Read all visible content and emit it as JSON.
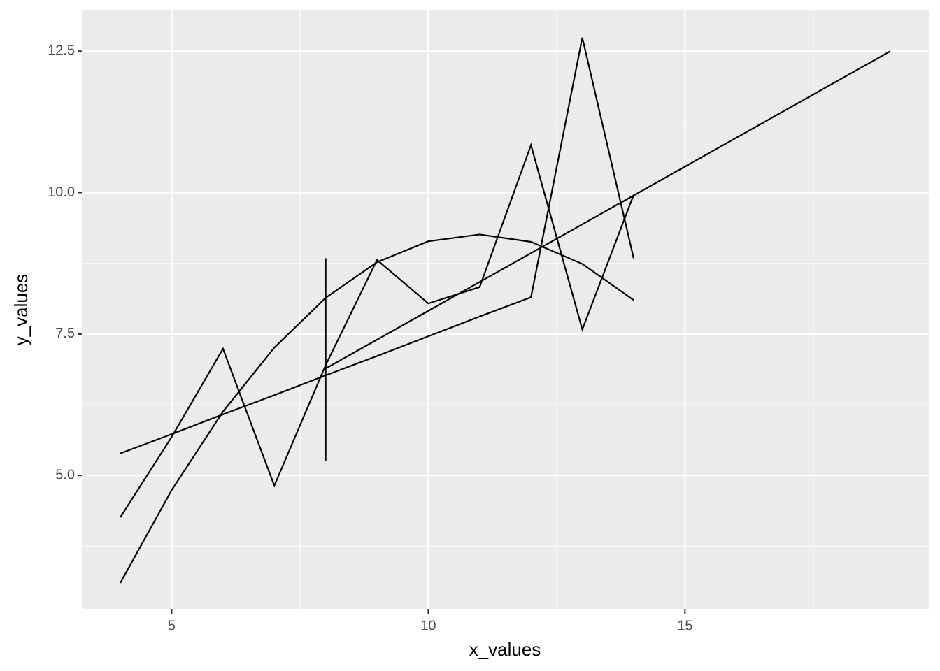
{
  "chart_data": {
    "type": "line",
    "x_label": "x_values",
    "y_label": "y_values",
    "series": [
      {
        "color": "#000000",
        "x": [
          4,
          5,
          6,
          7,
          8,
          9,
          10,
          11,
          12,
          13,
          14
        ],
        "values": [
          4.26,
          5.68,
          7.24,
          4.82,
          6.95,
          8.81,
          8.04,
          8.33,
          10.84,
          7.58,
          9.96
        ]
      },
      {
        "color": "#000000",
        "x": [
          4,
          5,
          6,
          7,
          8,
          9,
          10,
          11,
          12,
          13,
          14
        ],
        "values": [
          3.1,
          4.74,
          6.13,
          7.26,
          8.14,
          8.77,
          9.14,
          9.26,
          9.13,
          8.74,
          8.1
        ]
      },
      {
        "color": "#000000",
        "x": [
          4,
          5,
          6,
          7,
          8,
          9,
          10,
          11,
          12,
          13,
          14
        ],
        "values": [
          5.39,
          5.73,
          6.08,
          6.42,
          6.77,
          7.11,
          7.46,
          7.81,
          8.15,
          12.74,
          8.84
        ]
      },
      {
        "color": "#000000",
        "x": [
          8,
          8,
          8,
          8,
          8,
          8,
          8,
          8,
          8,
          8,
          19
        ],
        "values": [
          6.58,
          5.76,
          7.71,
          8.84,
          8.47,
          7.04,
          5.25,
          5.56,
          7.91,
          6.89,
          12.5
        ]
      }
    ],
    "xlim": [
      3.25,
      19.75
    ],
    "ylim": [
      2.63,
      13.22
    ],
    "xticks": [
      5,
      10,
      15
    ],
    "yticks": [
      {
        "value": 5,
        "label": "5.0"
      },
      {
        "value": 7.5,
        "label": "7.5"
      },
      {
        "value": 10,
        "label": "10.0"
      },
      {
        "value": 12.5,
        "label": "12.5"
      }
    ],
    "x_minor_grid": [
      7.5,
      12.5,
      17.5
    ],
    "y_minor_grid": [
      3.75,
      6.25,
      8.75,
      11.25
    ],
    "grid": true
  }
}
